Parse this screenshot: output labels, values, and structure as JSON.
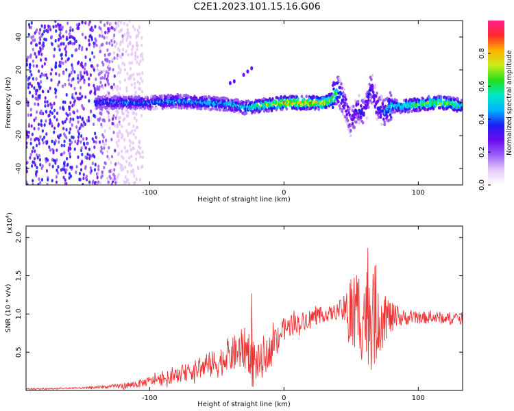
{
  "title": "C2E1.2023.101.15.16.G06",
  "chart_data": [
    {
      "type": "heatmap",
      "xlabel": "Height of straight line (km)",
      "ylabel": "Frequency (Hz)",
      "xlim": [
        -192,
        133
      ],
      "ylim": [
        -50,
        50
      ],
      "xticks": [
        -100,
        0,
        100
      ],
      "yticks": [
        -40,
        -20,
        0,
        20,
        40
      ],
      "colorbar": {
        "label": "Normalized spectral amplitude",
        "range": [
          0,
          1
        ],
        "ticks": [
          "0.0",
          "0.2",
          "0.4",
          "0.6",
          "0.8"
        ],
        "colors": [
          "#ffffff",
          "#e4c9f7",
          "#9a5ef5",
          "#6a0df0",
          "#1f1ff5",
          "#00b4ff",
          "#00e8c8",
          "#22e01a",
          "#c8ec1a",
          "#ffb000",
          "#ff2a2a",
          "#ff1f8f"
        ]
      },
      "ridge": {
        "x": [
          -140,
          -120,
          -100,
          -80,
          -60,
          -40,
          -30,
          -20,
          -10,
          0,
          10,
          20,
          30,
          36,
          40,
          45,
          50,
          55,
          60,
          65,
          70,
          75,
          80,
          90,
          100,
          110,
          120,
          133
        ],
        "freq": [
          0,
          0,
          0,
          1,
          0,
          -1,
          -3,
          -2,
          -1,
          0,
          0,
          0,
          0,
          2,
          8,
          0,
          -12,
          -3,
          -6,
          10,
          -3,
          -6,
          -2,
          -2,
          -1,
          0,
          0,
          -2
        ],
        "peak": [
          0.45,
          0.5,
          0.5,
          0.55,
          0.55,
          0.55,
          0.6,
          0.7,
          0.8,
          0.95,
          0.95,
          0.95,
          0.9,
          0.8,
          0.6,
          0.4,
          0.35,
          0.4,
          0.4,
          0.4,
          0.4,
          0.45,
          0.6,
          0.7,
          0.75,
          0.8,
          0.8,
          0.7
        ]
      },
      "noise_region_x": [
        -192,
        -105
      ]
    },
    {
      "type": "line",
      "xlabel": "Height of straight line (km)",
      "ylabel": "SNR (10 * v/v)",
      "yscale_label": "(x10",
      "yscale_exponent": "4",
      "xlim": [
        -192,
        133
      ],
      "ylim": [
        0,
        2.15
      ],
      "xticks": [
        -100,
        0,
        100
      ],
      "yticks": [
        0.5,
        1.0,
        1.5,
        2.0
      ],
      "ytick_labels": [
        "0.5",
        "1.0",
        "1.5",
        "2.0"
      ],
      "series": [
        {
          "color": "#ee3333",
          "x": [
            -192,
            -175,
            -160,
            -150,
            -140,
            -130,
            -120,
            -110,
            -100,
            -90,
            -80,
            -70,
            -60,
            -50,
            -45,
            -40,
            -35,
            -30,
            -25,
            -20,
            -15,
            -10,
            -5,
            0,
            10,
            20,
            30,
            35,
            40,
            45,
            50,
            55,
            60,
            65,
            70,
            75,
            80,
            85,
            90,
            100,
            110,
            120,
            133
          ],
          "y": [
            0.02,
            0.02,
            0.03,
            0.03,
            0.04,
            0.05,
            0.06,
            0.08,
            0.12,
            0.15,
            0.2,
            0.25,
            0.3,
            0.35,
            0.4,
            0.45,
            0.5,
            0.55,
            0.5,
            0.35,
            0.4,
            0.55,
            0.7,
            0.8,
            0.88,
            0.95,
            1.0,
            1.0,
            1.05,
            1.05,
            1.0,
            1.0,
            1.0,
            1.0,
            1.0,
            0.98,
            0.95,
            0.95,
            0.95,
            0.95,
            0.95,
            0.95,
            0.95
          ],
          "spread": [
            0.01,
            0.01,
            0.01,
            0.01,
            0.02,
            0.02,
            0.04,
            0.05,
            0.06,
            0.08,
            0.1,
            0.12,
            0.15,
            0.2,
            0.2,
            0.22,
            0.25,
            0.28,
            0.3,
            0.25,
            0.22,
            0.2,
            0.2,
            0.15,
            0.12,
            0.12,
            0.1,
            0.1,
            0.1,
            0.2,
            0.6,
            0.65,
            0.6,
            0.75,
            0.6,
            0.35,
            0.2,
            0.15,
            0.1,
            0.08,
            0.08,
            0.08,
            0.07
          ]
        }
      ]
    }
  ]
}
